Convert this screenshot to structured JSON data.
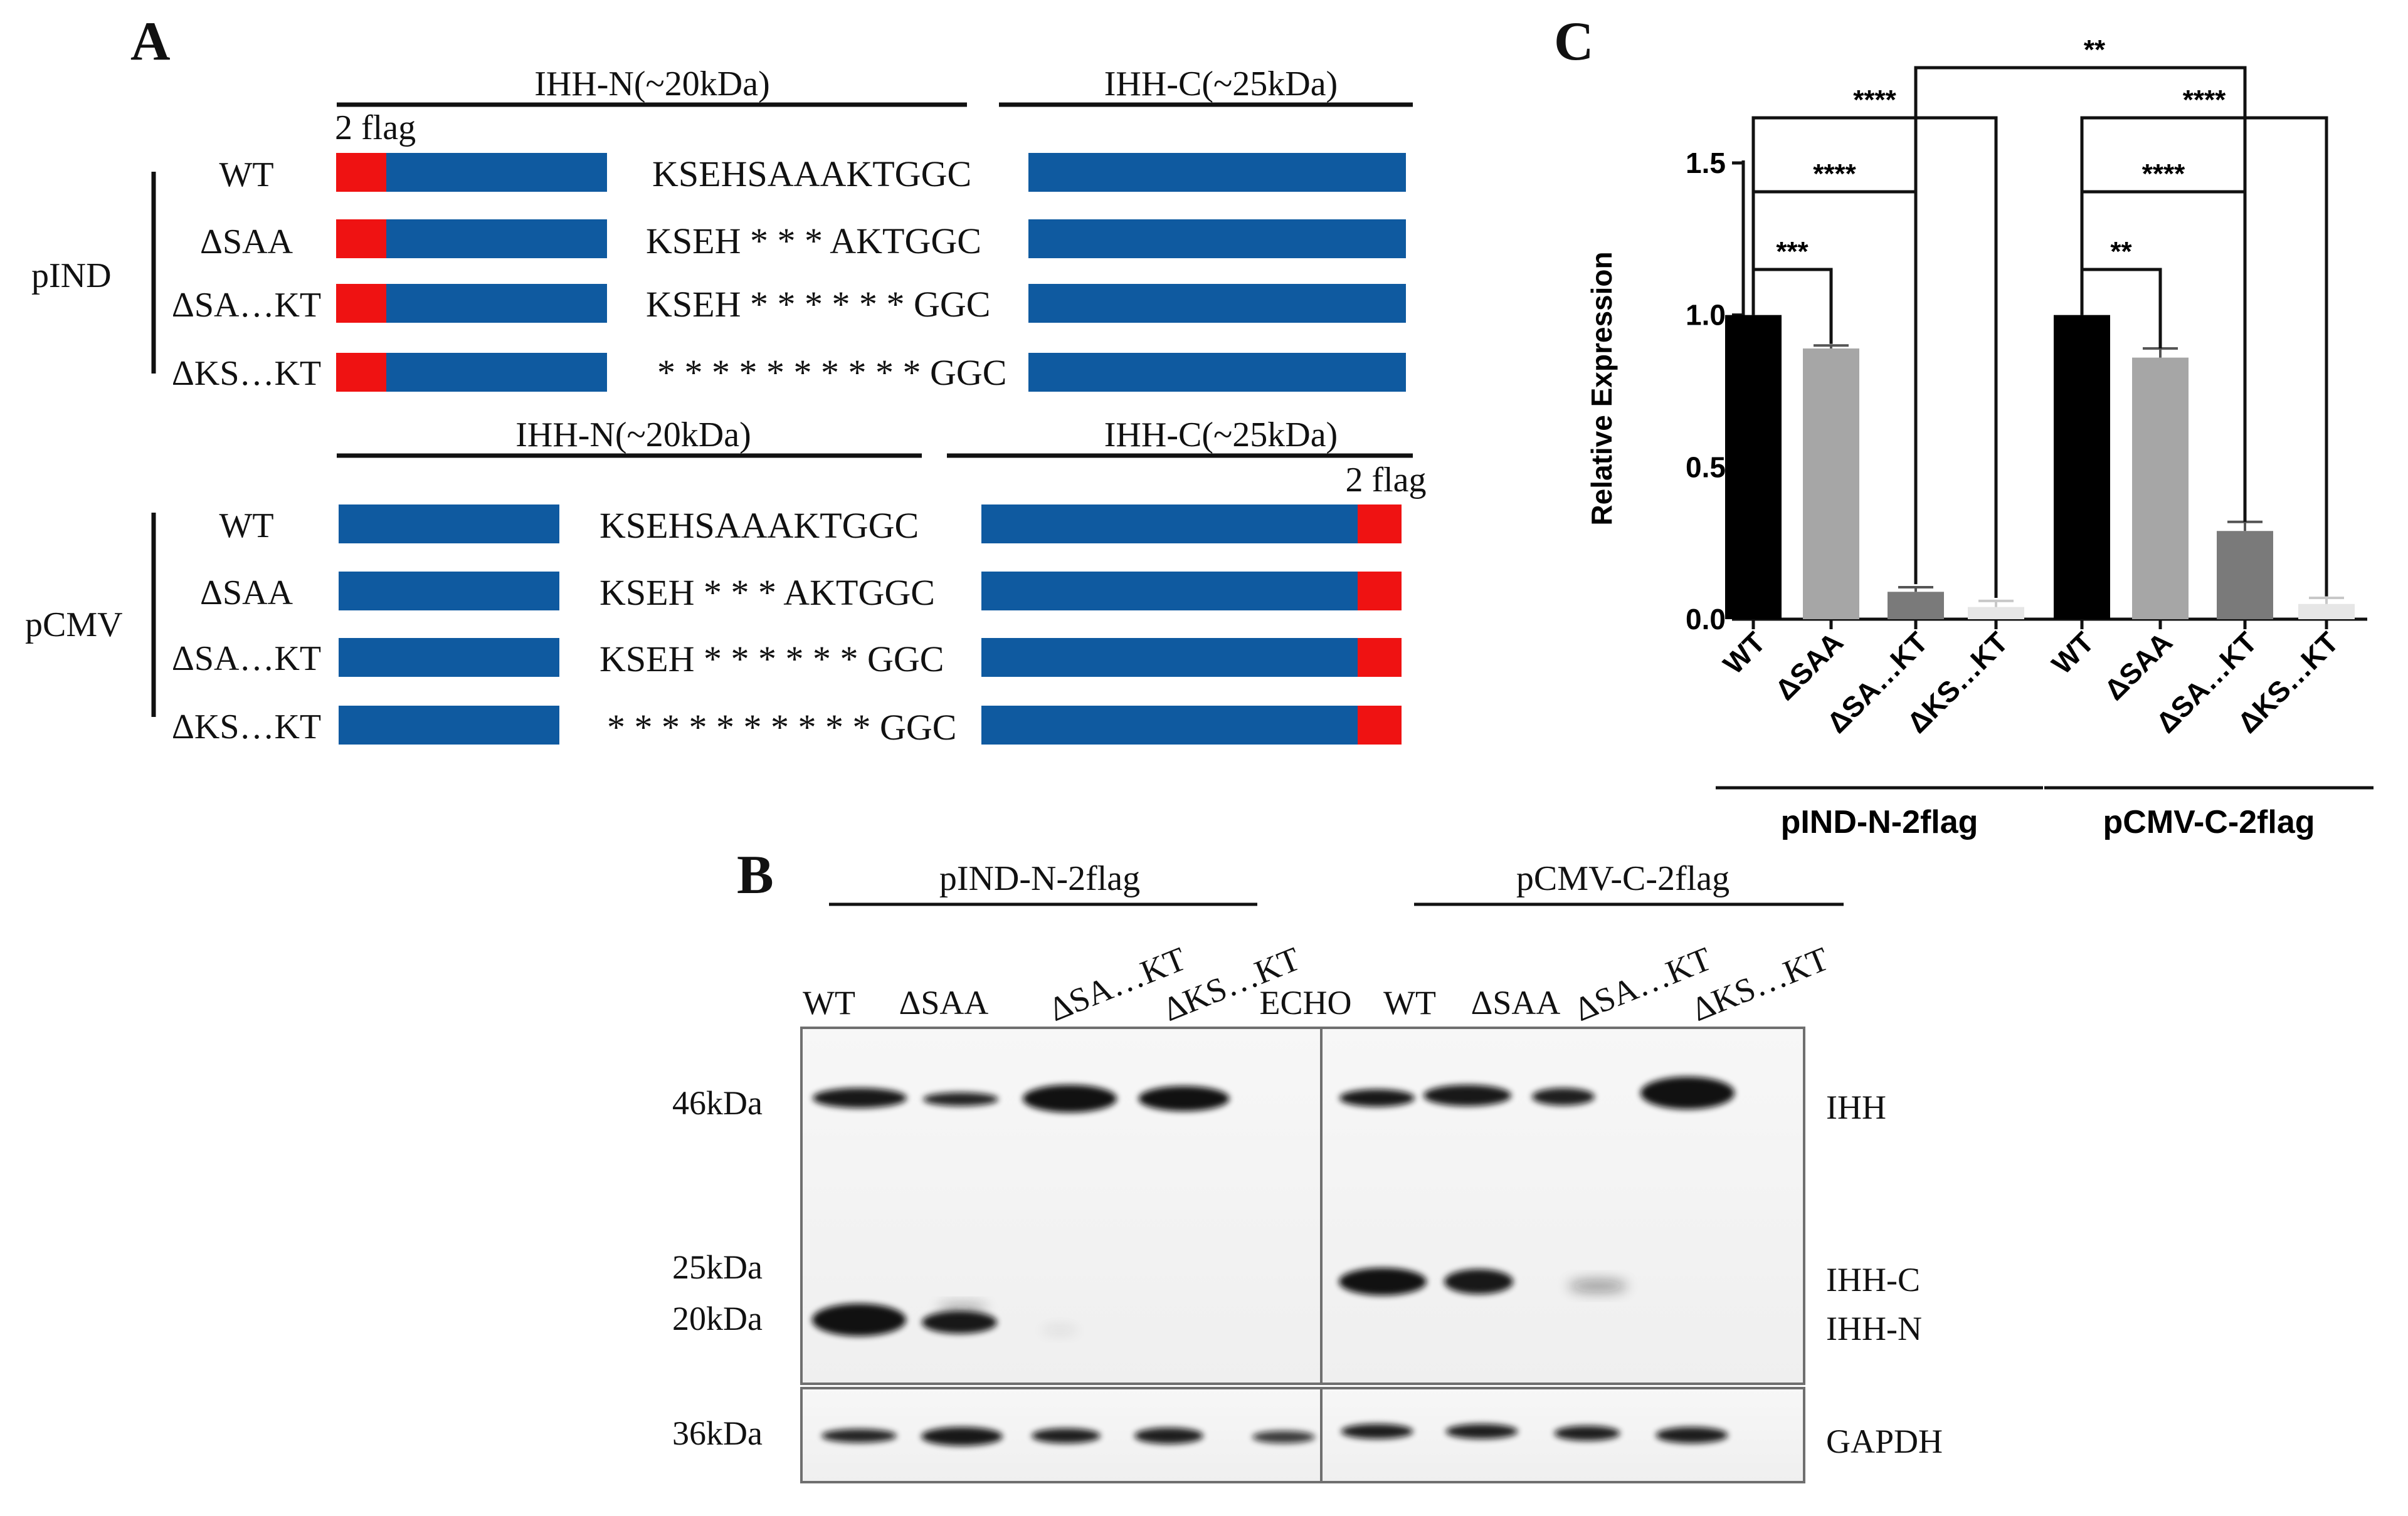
{
  "panel_labels": {
    "a": "A",
    "b": "B",
    "c": "C"
  },
  "panel_a": {
    "flag_label": "2 flag",
    "blocks": [
      {
        "vector": "pIND",
        "header_n": "IHH-N(~20kDa)",
        "header_c": "IHH-C(~25kDa)",
        "flag_position": "N",
        "rows": [
          {
            "name": "WT",
            "seq": "KSEHSAAAKTGGC"
          },
          {
            "name": "ΔSAA",
            "seq": "KSEH * * * AKTGGC"
          },
          {
            "name": "ΔSA…KT",
            "seq": "KSEH * * * * * * GGC"
          },
          {
            "name": "ΔKS…KT",
            "seq": "* * * * * * * * * * GGC"
          }
        ]
      },
      {
        "vector": "pCMV",
        "header_n": "IHH-N(~20kDa)",
        "header_c": "IHH-C(~25kDa)",
        "flag_position": "C",
        "rows": [
          {
            "name": "WT",
            "seq": "KSEHSAAAKTGGC"
          },
          {
            "name": "ΔSAA",
            "seq": "KSEH * * * AKTGGC"
          },
          {
            "name": "ΔSA…KT",
            "seq": "KSEH * * * * * * GGC"
          },
          {
            "name": "ΔKS…KT",
            "seq": "* * * * * * * * * * GGC"
          }
        ]
      }
    ],
    "colors": {
      "flag": "#ef1212",
      "body": "#0f5aa0"
    }
  },
  "panel_b": {
    "group_left": "pIND-N-2flag",
    "group_right": "pCMV-C-2flag",
    "lanes_left": [
      "WT",
      "ΔSAA",
      "ΔSA…KT",
      "ΔKS…KT",
      "ECHO"
    ],
    "lanes_right": [
      "WT",
      "ΔSAA",
      "ΔSA…KT",
      "ΔKS…KT"
    ],
    "markers": [
      "46kDa",
      "25kDa",
      "20kDa",
      "36kDa"
    ],
    "band_labels": [
      "IHH",
      "IHH-C",
      "IHH-N",
      "GAPDH"
    ]
  },
  "chart_data": {
    "type": "bar",
    "ylabel": "Relative Expression",
    "ylim": [
      0,
      1.5
    ],
    "yticks": [
      "0.0",
      "0.5",
      "1.0",
      "1.5"
    ],
    "categories": [
      "WT",
      "ΔSAA",
      "ΔSA…KT",
      "ΔKS…KT",
      "WT",
      "ΔSAA",
      "ΔSA…KT",
      "ΔKS…KT"
    ],
    "values": [
      1.0,
      0.89,
      0.09,
      0.04,
      1.0,
      0.86,
      0.29,
      0.05
    ],
    "errors": [
      0,
      0.01,
      0.015,
      0.02,
      0,
      0.03,
      0.03,
      0.02
    ],
    "bar_colors": [
      "#000000",
      "#a6a6a6",
      "#7a7a7a",
      "#e6e6e6",
      "#000000",
      "#a6a6a6",
      "#7a7a7a",
      "#e6e6e6"
    ],
    "groups": [
      {
        "label": "pIND-N-2flag",
        "indices": [
          0,
          1,
          2,
          3
        ]
      },
      {
        "label": "pCMV-C-2flag",
        "indices": [
          4,
          5,
          6,
          7
        ]
      }
    ],
    "comparisons": [
      {
        "from": 0,
        "to": 1,
        "label": "***"
      },
      {
        "from": 0,
        "to": 2,
        "label": "****"
      },
      {
        "from": 0,
        "to": 3,
        "label": "****"
      },
      {
        "from": 4,
        "to": 5,
        "label": "**"
      },
      {
        "from": 4,
        "to": 6,
        "label": "****"
      },
      {
        "from": 4,
        "to": 7,
        "label": "****"
      },
      {
        "from": 2,
        "to": 6,
        "label": "**"
      }
    ]
  }
}
